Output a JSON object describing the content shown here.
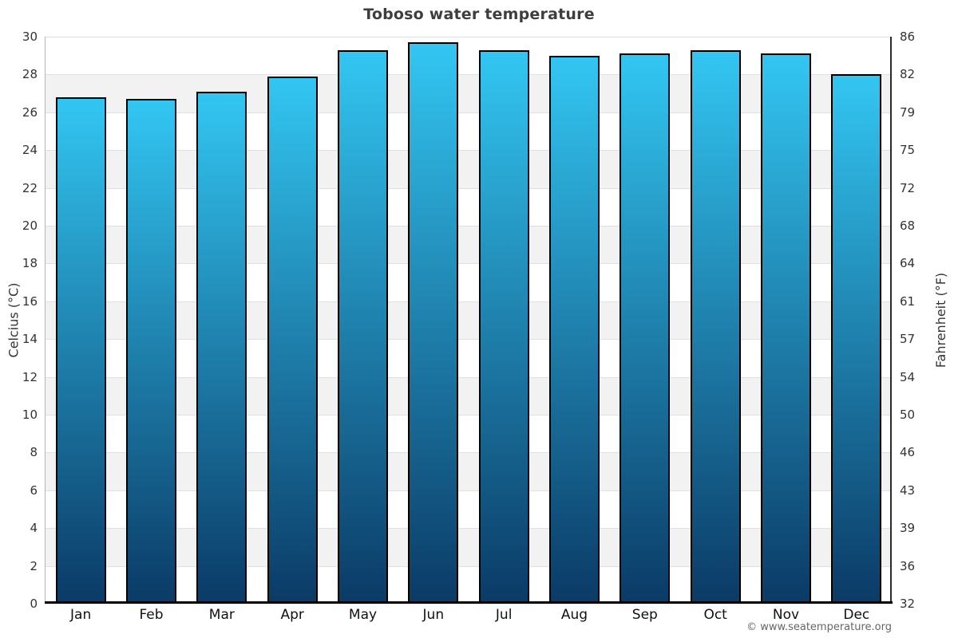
{
  "chart_data": {
    "type": "bar",
    "title": "Toboso water temperature",
    "categories": [
      "Jan",
      "Feb",
      "Mar",
      "Apr",
      "May",
      "Jun",
      "Jul",
      "Aug",
      "Sep",
      "Oct",
      "Nov",
      "Dec"
    ],
    "values": [
      26.8,
      26.7,
      27.1,
      27.9,
      29.3,
      29.7,
      29.3,
      29.0,
      29.1,
      29.3,
      29.1,
      28.0
    ],
    "unit": "°C",
    "ylabel_left": "Celcius (°C)",
    "ylabel_right": "Fahrenheit (°F)",
    "ylim": [
      0,
      30
    ],
    "ytick_step": 2,
    "yticks_celsius": [
      "30",
      "28",
      "26",
      "24",
      "22",
      "20",
      "18",
      "16",
      "14",
      "12",
      "10",
      "8",
      "6",
      "4",
      "2",
      "0"
    ],
    "yticks_fahrenheit": [
      "86",
      "82",
      "79",
      "75",
      "72",
      "68",
      "64",
      "61",
      "57",
      "54",
      "50",
      "46",
      "43",
      "39",
      "36",
      "32"
    ],
    "grid": "alternating horizontal bands every 2°C, thin gridlines at band edges",
    "legend": "none",
    "colors": {
      "bar_gradient_top": "#33c6f2",
      "bar_gradient_bottom": "#0b3a66",
      "bar_border": "#000000",
      "band_alt": "#f2f2f2",
      "gridline": "#e0e0e0",
      "title": "#3e3e3e"
    }
  },
  "footer": {
    "attribution": "© www.seatemperature.org"
  }
}
